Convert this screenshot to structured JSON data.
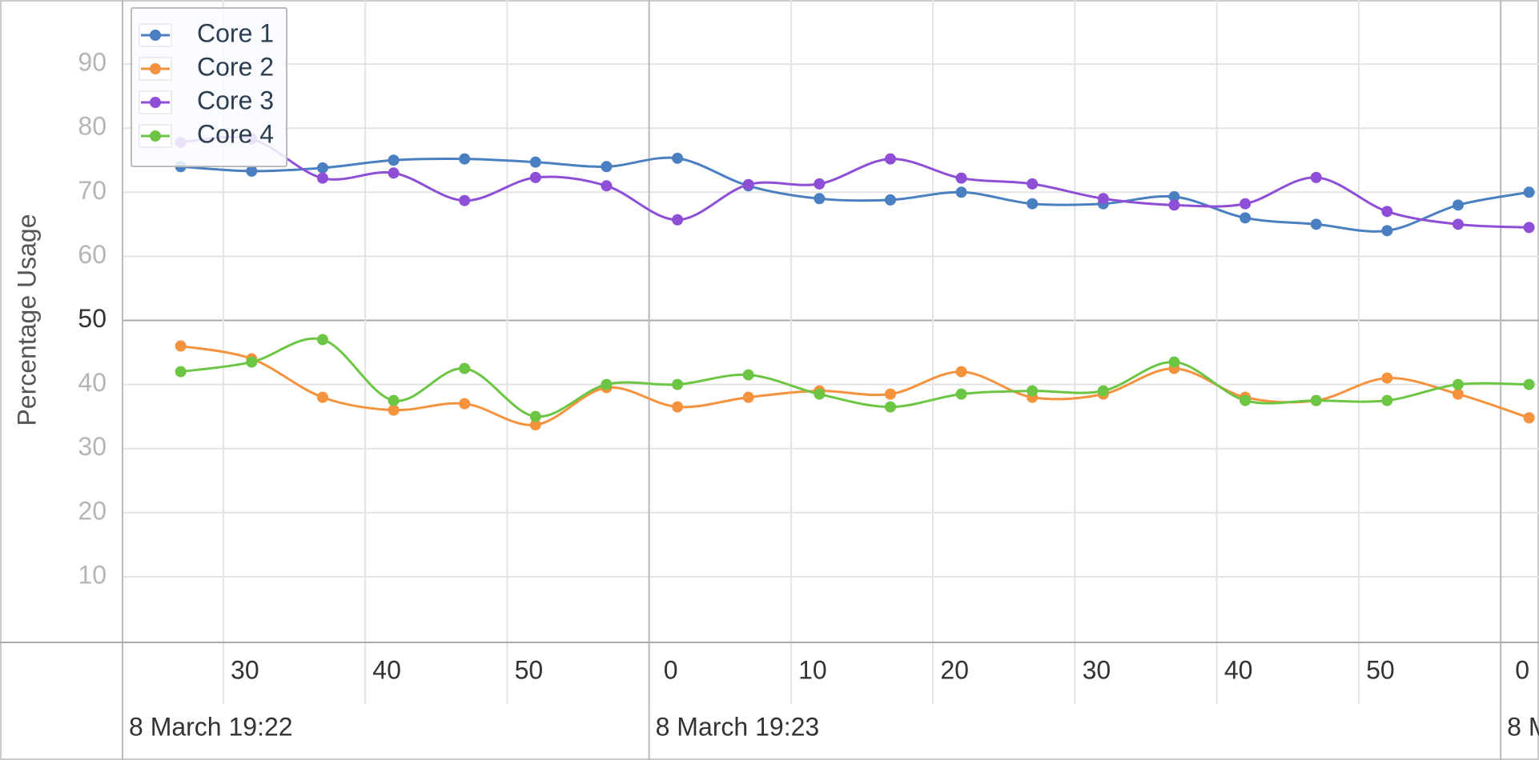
{
  "chart_data": {
    "type": "line",
    "y_label": "Percentage Usage",
    "x": [
      27,
      32,
      37,
      42,
      47,
      52,
      57,
      62,
      67,
      72,
      77,
      82,
      87,
      92,
      97,
      102,
      107,
      112,
      117,
      122
    ],
    "series": [
      {
        "name": "Core 1",
        "color": "#4a7fc1",
        "values": [
          74,
          73.3,
          73.8,
          75,
          75.2,
          74.7,
          74,
          75.3,
          71,
          69,
          68.8,
          70,
          68.2,
          68.2,
          69.3,
          66,
          65,
          64,
          68,
          70
        ]
      },
      {
        "name": "Core 2",
        "color": "#f5923e",
        "values": [
          46,
          44,
          38,
          36,
          37,
          33.7,
          39.5,
          36.5,
          38,
          39,
          38.5,
          42,
          38,
          38.5,
          42.5,
          38,
          37.5,
          41,
          38.5,
          34.8
        ]
      },
      {
        "name": "Core 3",
        "color": "#8e4fd6",
        "values": [
          77.8,
          78.3,
          72.2,
          73,
          68.7,
          72.3,
          71,
          65.7,
          71.2,
          71.3,
          75.2,
          72.2,
          71.3,
          69,
          68,
          68.2,
          72.3,
          67,
          65,
          64.5
        ]
      },
      {
        "name": "Core 4",
        "color": "#6cc644",
        "values": [
          42,
          43.5,
          47,
          37.5,
          42.5,
          35,
          40,
          40,
          41.5,
          38.5,
          36.5,
          38.5,
          39,
          39,
          43.5,
          37.5,
          37.5,
          37.5,
          40,
          40
        ]
      }
    ],
    "xlim": [
      22.9,
      122.7
    ],
    "xticks": [
      {
        "value": 30,
        "label": "30"
      },
      {
        "value": 40,
        "label": "40"
      },
      {
        "value": 50,
        "label": "50"
      },
      {
        "value": 60,
        "label": "0"
      },
      {
        "value": 70,
        "label": "10"
      },
      {
        "value": 80,
        "label": "20"
      },
      {
        "value": 90,
        "label": "30"
      },
      {
        "value": 100,
        "label": "40"
      },
      {
        "value": 110,
        "label": "50"
      },
      {
        "value": 120,
        "label": "0"
      }
    ],
    "xticks_major": [
      {
        "value": 22.9,
        "label": "8 March 19:22"
      },
      {
        "value": 60,
        "label": "8 March 19:23"
      },
      {
        "value": 120,
        "label": "8 M"
      }
    ],
    "ylim": [
      0,
      100
    ],
    "yticks": [
      10,
      20,
      30,
      40,
      50,
      60,
      70,
      80,
      90
    ],
    "grid": true,
    "legend": "top-left"
  }
}
